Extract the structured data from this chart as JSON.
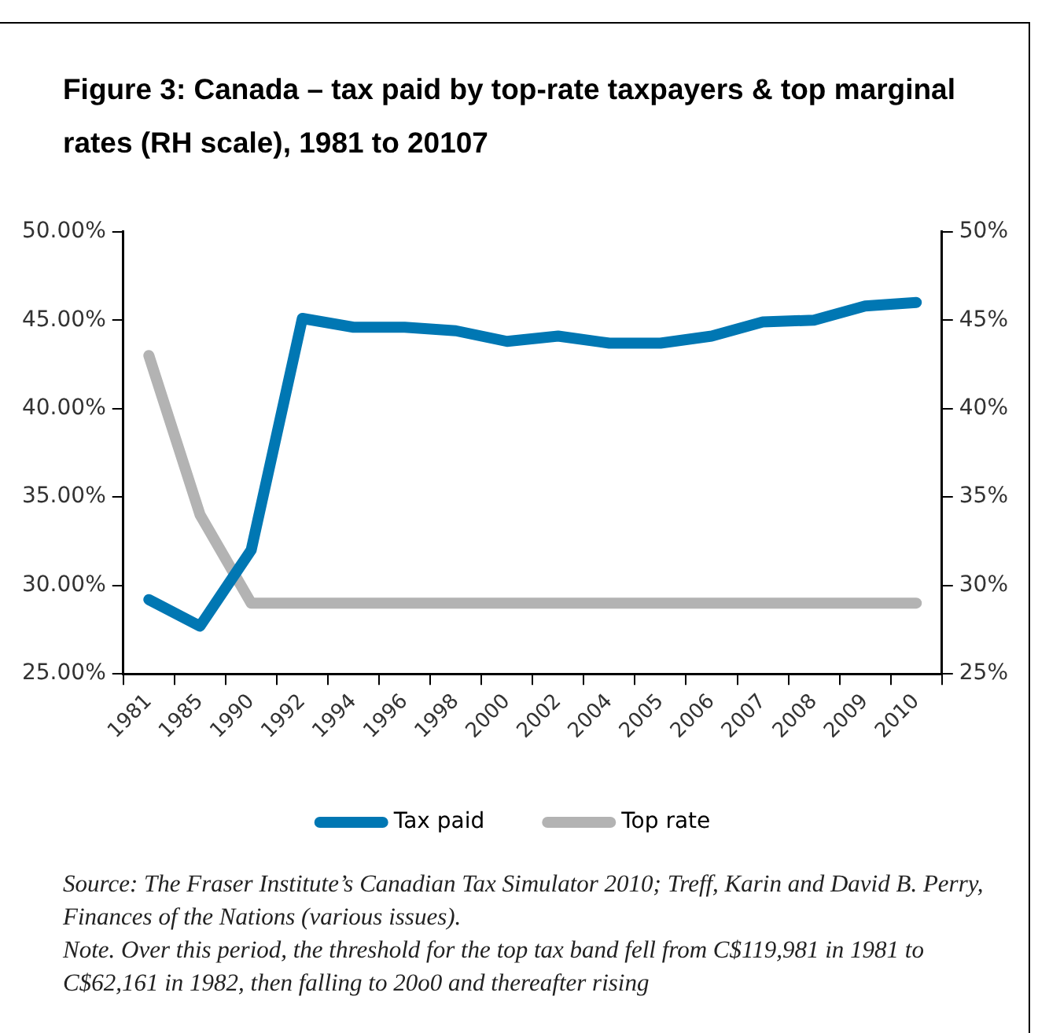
{
  "chart_data": {
    "type": "line",
    "title": "Figure 3: Canada – tax paid by top-rate taxpayers & top marginal rates (RH scale), 1981 to 20107",
    "categories": [
      "1981",
      "1985",
      "1990",
      "1992",
      "1994",
      "1996",
      "1998",
      "2000",
      "2002",
      "2004",
      "2005",
      "2006",
      "2007",
      "2008",
      "2009",
      "2010"
    ],
    "series": [
      {
        "name": "Tax paid",
        "color": "#0077b3",
        "values": [
          29.2,
          27.7,
          32.0,
          45.1,
          44.6,
          44.6,
          44.4,
          43.8,
          44.1,
          43.7,
          43.7,
          44.1,
          44.9,
          45.0,
          45.8,
          46.0
        ]
      },
      {
        "name": "Top rate",
        "color": "#b3b3b3",
        "axis": "y2",
        "values": [
          43.0,
          34.0,
          29.0,
          29.0,
          29.0,
          29.0,
          29.0,
          29.0,
          29.0,
          29.0,
          29.0,
          29.0,
          29.0,
          29.0,
          29.0,
          29.0
        ]
      }
    ],
    "ylim": [
      25,
      50
    ],
    "yticks": [
      {
        "value": 25,
        "label": "25.00%"
      },
      {
        "value": 30,
        "label": "30.00%"
      },
      {
        "value": 35,
        "label": "35.00%"
      },
      {
        "value": 40,
        "label": "40.00%"
      },
      {
        "value": 45,
        "label": "45.00%"
      },
      {
        "value": 50,
        "label": "50.00%"
      }
    ],
    "y2lim": [
      25,
      50
    ],
    "y2ticks": [
      {
        "value": 25,
        "label": "25%"
      },
      {
        "value": 30,
        "label": "30%"
      },
      {
        "value": 35,
        "label": "35%"
      },
      {
        "value": 40,
        "label": "40%"
      },
      {
        "value": 45,
        "label": "45%"
      },
      {
        "value": 50,
        "label": "50%"
      }
    ],
    "grid": false,
    "legend": "bottom",
    "marker": "none",
    "line_style": "solid",
    "annotations": [
      "Source: The Fraser Institute’s Canadian Tax Simulator 2010; Treff, Karin and David B. Perry, Finances of the Nations (various issues).",
      "Note. Over this period, the threshold for the top tax band fell from C$119,981 in 1981 to C$62,161 in 1982, then falling to 20o0 and thereafter rising"
    ]
  }
}
